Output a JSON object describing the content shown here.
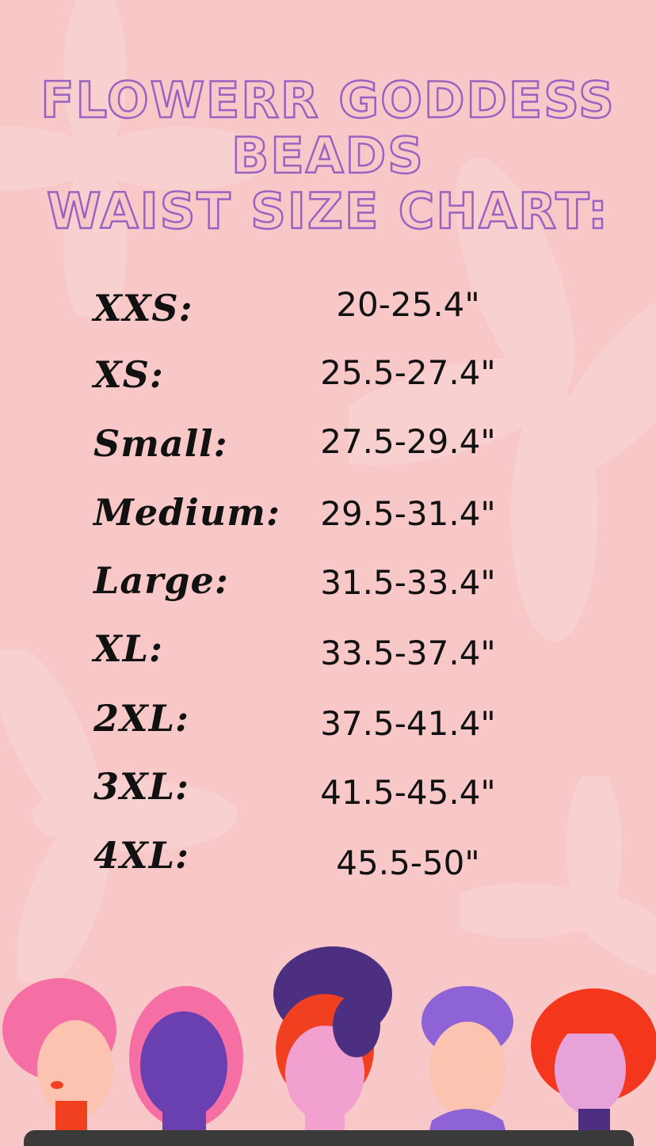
{
  "title": {
    "line1": "FLOWERR GODDESS",
    "line2": "BEADS",
    "line3": "WAIST SIZE CHART:"
  },
  "sizes": [
    {
      "size": "XXS:",
      "range": "20-25.4\""
    },
    {
      "size": "XS:",
      "range": "25.5-27.4\""
    },
    {
      "size": "Small:",
      "range": "27.5-29.4\""
    },
    {
      "size": "Medium:",
      "range": "29.5-31.4\""
    },
    {
      "size": "Large:",
      "range": "31.5-33.4\""
    },
    {
      "size": "XL:",
      "range": "33.5-37.4\""
    },
    {
      "size": "2XL:",
      "range": "37.5-41.4\""
    },
    {
      "size": "3XL:",
      "range": "41.5-45.4\""
    },
    {
      "size": "4XL:",
      "range": "45.5-50\""
    }
  ],
  "colors": {
    "background": "#f8c8c8",
    "title_outline": "#9a62c0",
    "text": "#111111"
  },
  "illustration": "five-women-faces"
}
